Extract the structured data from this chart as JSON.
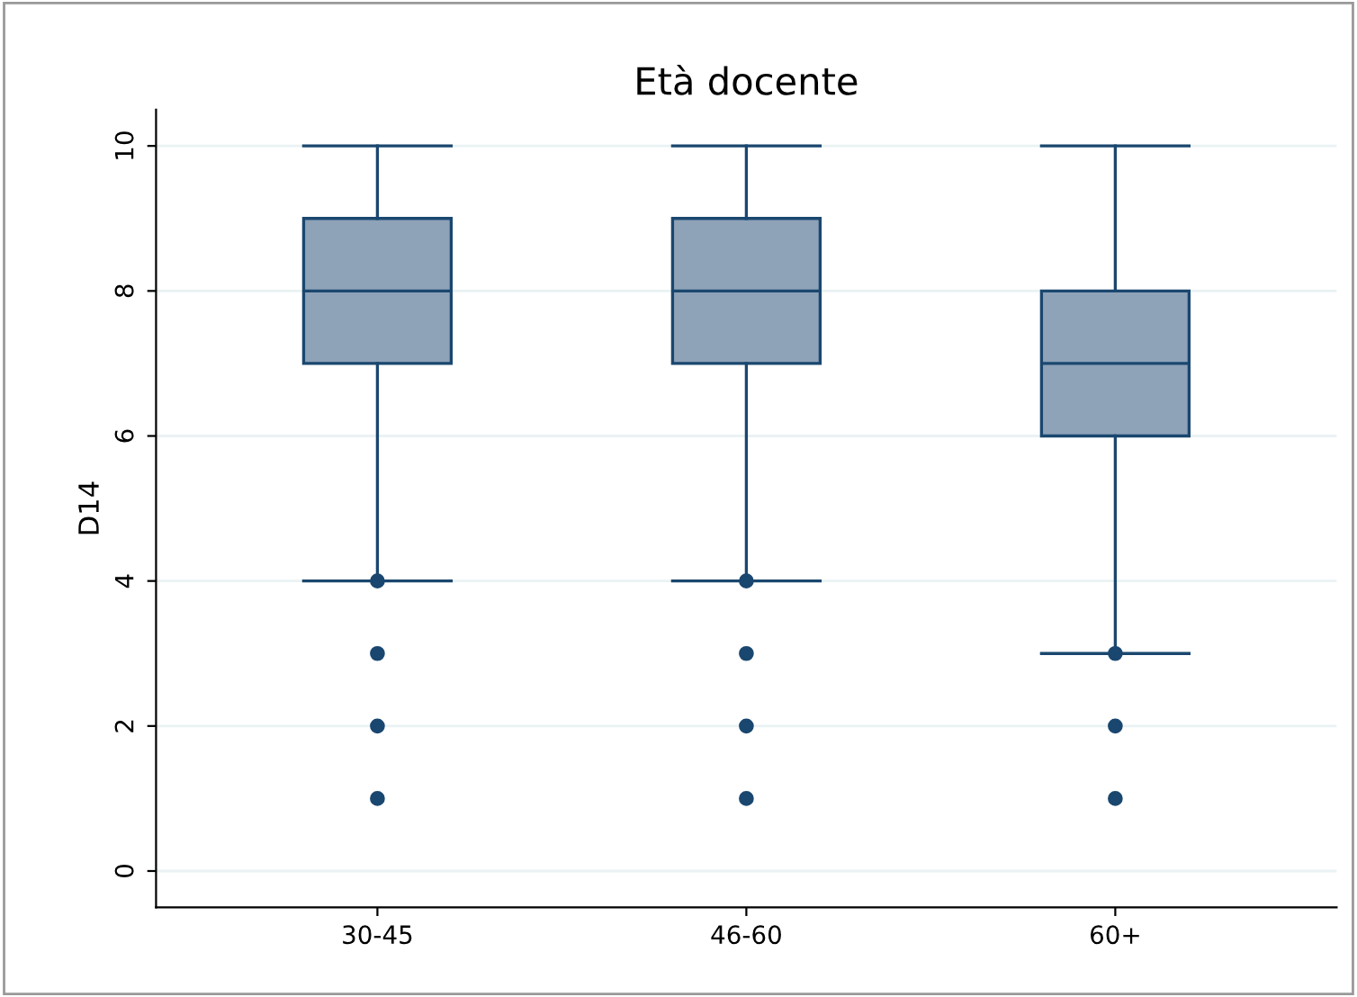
{
  "chart_data": {
    "type": "box",
    "title": "Età docente",
    "ylabel": "D14",
    "categories": [
      "30-45",
      "46-60",
      "60+"
    ],
    "boxes": [
      {
        "low": 4,
        "q1": 7,
        "median": 8,
        "q3": 9,
        "high": 10,
        "outliers": [
          4,
          3,
          2,
          1
        ]
      },
      {
        "low": 4,
        "q1": 7,
        "median": 8,
        "q3": 9,
        "high": 10,
        "outliers": [
          4,
          3,
          2,
          1
        ]
      },
      {
        "low": 3,
        "q1": 6,
        "median": 7,
        "q3": 8,
        "high": 10,
        "outliers": [
          3,
          2,
          1
        ]
      }
    ],
    "color": "#8ea2b8",
    "ylim": [
      -0.5,
      10.5
    ],
    "yticks": [
      0,
      2,
      4,
      6,
      8,
      10
    ],
    "grid": "y",
    "legend": false
  }
}
